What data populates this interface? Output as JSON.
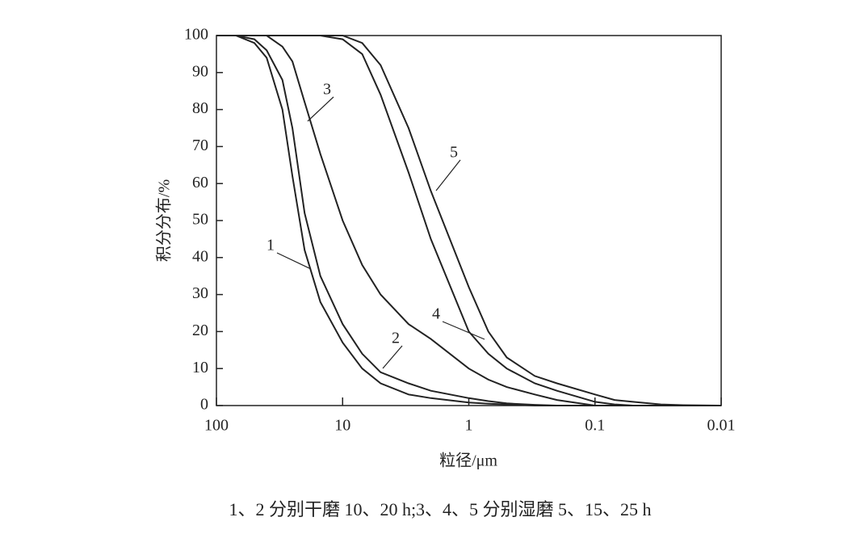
{
  "chart_data": {
    "type": "line",
    "y_label": "积分分布/%",
    "x_label": "粒径/μm",
    "caption": "1、2 分别干磨 10、20 h;3、4、5 分别湿磨 5、15、25 h",
    "x_scale": "log",
    "xlim": [
      100,
      0.01
    ],
    "xticks": [
      100,
      10,
      1,
      0.1,
      0.01
    ],
    "ylim": [
      0,
      100
    ],
    "yticks": [
      0,
      10,
      20,
      30,
      40,
      50,
      60,
      70,
      80,
      90,
      100
    ],
    "x": [
      100,
      70,
      50,
      40,
      30,
      25,
      20,
      15,
      10,
      7,
      5,
      3,
      2,
      1,
      0.7,
      0.5,
      0.3,
      0.2,
      0.1,
      0.07,
      0.05,
      0.03,
      0.02,
      0.01
    ],
    "series": [
      {
        "name": "1",
        "color": "#222222",
        "values": [
          100,
          100,
          98,
          94,
          80,
          62,
          42,
          28,
          17,
          10,
          6,
          3,
          2,
          0.8,
          0.5,
          0.3,
          0,
          0,
          0,
          0,
          0,
          0,
          0,
          0
        ]
      },
      {
        "name": "2",
        "color": "#222222",
        "values": [
          100,
          100,
          99,
          96,
          88,
          75,
          52,
          35,
          22,
          14,
          9,
          6,
          4,
          2,
          1.2,
          0.6,
          0.2,
          0,
          0,
          0,
          0,
          0,
          0,
          0
        ]
      },
      {
        "name": "3",
        "color": "#222222",
        "values": [
          100,
          100,
          100,
          100,
          97,
          93,
          82,
          68,
          50,
          38,
          30,
          22,
          18,
          10,
          7,
          5,
          3,
          1.5,
          0,
          0,
          0,
          0,
          0,
          0
        ]
      },
      {
        "name": "4",
        "color": "#222222",
        "values": [
          100,
          100,
          100,
          100,
          100,
          100,
          100,
          100,
          99,
          95,
          84,
          63,
          45,
          20,
          14,
          10,
          6,
          4,
          1,
          0.3,
          0,
          0,
          0,
          0
        ]
      },
      {
        "name": "5",
        "color": "#222222",
        "values": [
          100,
          100,
          100,
          100,
          100,
          100,
          100,
          100,
          100,
          98,
          92,
          75,
          58,
          32,
          20,
          13,
          8,
          6,
          3,
          1.5,
          1,
          0.3,
          0.1,
          0
        ]
      }
    ]
  }
}
